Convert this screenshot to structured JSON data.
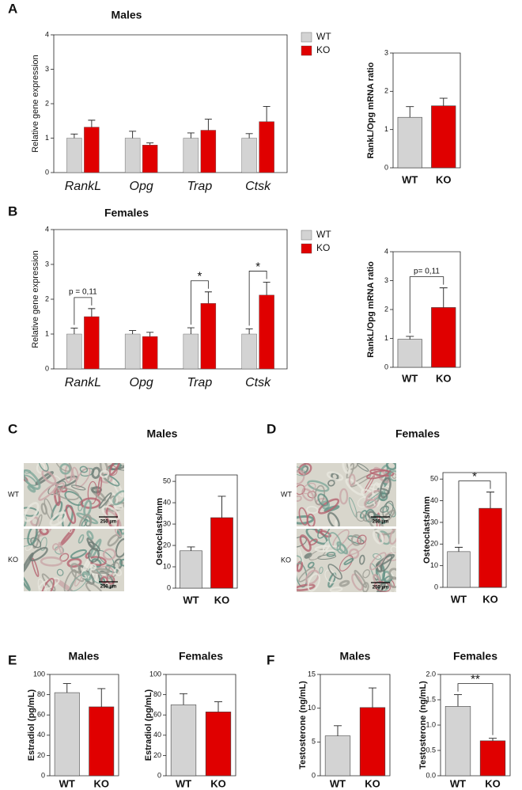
{
  "chart_data": [
    {
      "type": "grouped-bar",
      "panel": "A",
      "title": "Males",
      "ylabel": "Relative gene expression",
      "categories": [
        "RankL",
        "Opg",
        "Trap",
        "Ctsk"
      ],
      "series": [
        {
          "name": "WT",
          "color": "#d3d3d3",
          "values": [
            1.0,
            1.0,
            1.0,
            1.0
          ],
          "errors": [
            0.12,
            0.2,
            0.15,
            0.13
          ]
        },
        {
          "name": "KO",
          "color": "#e00000",
          "values": [
            1.32,
            0.8,
            1.23,
            1.48
          ],
          "errors": [
            0.2,
            0.06,
            0.32,
            0.44
          ]
        }
      ],
      "ylim": [
        0,
        4
      ],
      "yticks": [
        0,
        1,
        2,
        3,
        4
      ],
      "legend": "right"
    },
    {
      "type": "bar",
      "ylabel": "RankL/Opg mRNA ratio",
      "categories": [
        "WT",
        "KO"
      ],
      "values": [
        1.32,
        1.62
      ],
      "errors": [
        0.28,
        0.2
      ],
      "colors": [
        "#d3d3d3",
        "#e00000"
      ],
      "ylim": [
        0,
        3
      ],
      "yticks": [
        0,
        1,
        2,
        3
      ]
    },
    {
      "type": "grouped-bar",
      "panel": "B",
      "title": "Females",
      "ylabel": "Relative gene expression",
      "categories": [
        "RankL",
        "Opg",
        "Trap",
        "Ctsk"
      ],
      "series": [
        {
          "name": "WT",
          "color": "#d3d3d3",
          "values": [
            1.0,
            1.0,
            1.0,
            1.0
          ],
          "errors": [
            0.17,
            0.1,
            0.18,
            0.15
          ]
        },
        {
          "name": "KO",
          "color": "#e00000",
          "values": [
            1.5,
            0.93,
            1.88,
            2.12
          ],
          "errors": [
            0.23,
            0.12,
            0.33,
            0.37
          ]
        }
      ],
      "annotations": [
        "p  = 0,11",
        null,
        "*",
        "*"
      ],
      "ylim": [
        0,
        4
      ],
      "yticks": [
        0,
        1,
        2,
        3,
        4
      ],
      "legend": "right"
    },
    {
      "type": "bar",
      "ylabel": "RankL/Opg mRNA ratio",
      "categories": [
        "WT",
        "KO"
      ],
      "values": [
        0.97,
        2.07
      ],
      "errors": [
        0.1,
        0.68
      ],
      "colors": [
        "#d3d3d3",
        "#e00000"
      ],
      "annotation": "p= 0,11",
      "ylim": [
        0,
        4
      ],
      "yticks": [
        0,
        1,
        2,
        3,
        4
      ]
    },
    {
      "type": "bar",
      "panel": "C",
      "title": "Males",
      "ylabel": "Osteoclasts/mm",
      "categories": [
        "WT",
        "KO"
      ],
      "values": [
        17.5,
        33
      ],
      "errors": [
        1.8,
        10
      ],
      "colors": [
        "#d3d3d3",
        "#e00000"
      ],
      "ylim": [
        0,
        53
      ],
      "yticks": [
        0,
        10,
        20,
        30,
        40,
        50
      ],
      "micrographs": [
        {
          "label": "WT",
          "scale_bar": "250 µm"
        },
        {
          "label": "KO",
          "scale_bar": "250 µm"
        }
      ]
    },
    {
      "type": "bar",
      "panel": "D",
      "title": "Females",
      "ylabel": "Osteoclasts/mm",
      "categories": [
        "WT",
        "KO"
      ],
      "values": [
        16.5,
        36.5
      ],
      "errors": [
        2,
        7.5
      ],
      "colors": [
        "#d3d3d3",
        "#e00000"
      ],
      "annotation": "*",
      "ylim": [
        0,
        53
      ],
      "yticks": [
        0,
        10,
        20,
        30,
        40,
        50
      ],
      "micrographs": [
        {
          "label": "WT",
          "scale_bar": "250 µm"
        },
        {
          "label": "KO",
          "scale_bar": "250 µm"
        }
      ]
    },
    {
      "type": "bar",
      "panel": "E",
      "title": "Males",
      "ylabel": "Estradiol (pg/mL)",
      "categories": [
        "WT",
        "KO"
      ],
      "values": [
        82,
        68
      ],
      "errors": [
        9,
        18
      ],
      "colors": [
        "#d3d3d3",
        "#e00000"
      ],
      "ylim": [
        0,
        100
      ],
      "yticks": [
        0,
        20,
        40,
        60,
        80,
        100
      ]
    },
    {
      "type": "bar",
      "title": "Females",
      "ylabel": "Estradiol (pg/mL)",
      "categories": [
        "WT",
        "KO"
      ],
      "values": [
        70,
        63
      ],
      "errors": [
        11,
        10
      ],
      "colors": [
        "#d3d3d3",
        "#e00000"
      ],
      "ylim": [
        0,
        100
      ],
      "yticks": [
        0,
        20,
        40,
        60,
        80,
        100
      ]
    },
    {
      "type": "bar",
      "panel": "F",
      "title": "Males",
      "ylabel": "Testosterone (ng/mL)",
      "categories": [
        "WT",
        "KO"
      ],
      "values": [
        5.9,
        10.1
      ],
      "errors": [
        1.5,
        2.9
      ],
      "colors": [
        "#d3d3d3",
        "#e00000"
      ],
      "ylim": [
        0,
        15
      ],
      "yticks": [
        0,
        5,
        10,
        15
      ]
    },
    {
      "type": "bar",
      "title": "Females",
      "ylabel": "Testosterone (ng/mL)",
      "categories": [
        "WT",
        "KO"
      ],
      "values": [
        1.37,
        0.69
      ],
      "errors": [
        0.23,
        0.05
      ],
      "colors": [
        "#d3d3d3",
        "#e00000"
      ],
      "annotation": "**",
      "ylim": [
        0,
        2
      ],
      "yticks": [
        {
          "value": 0,
          "label": "0.0"
        },
        0.5,
        {
          "value": 1,
          "label": "1.0"
        },
        1.5,
        {
          "value": 2,
          "label": "2.0"
        }
      ]
    }
  ]
}
